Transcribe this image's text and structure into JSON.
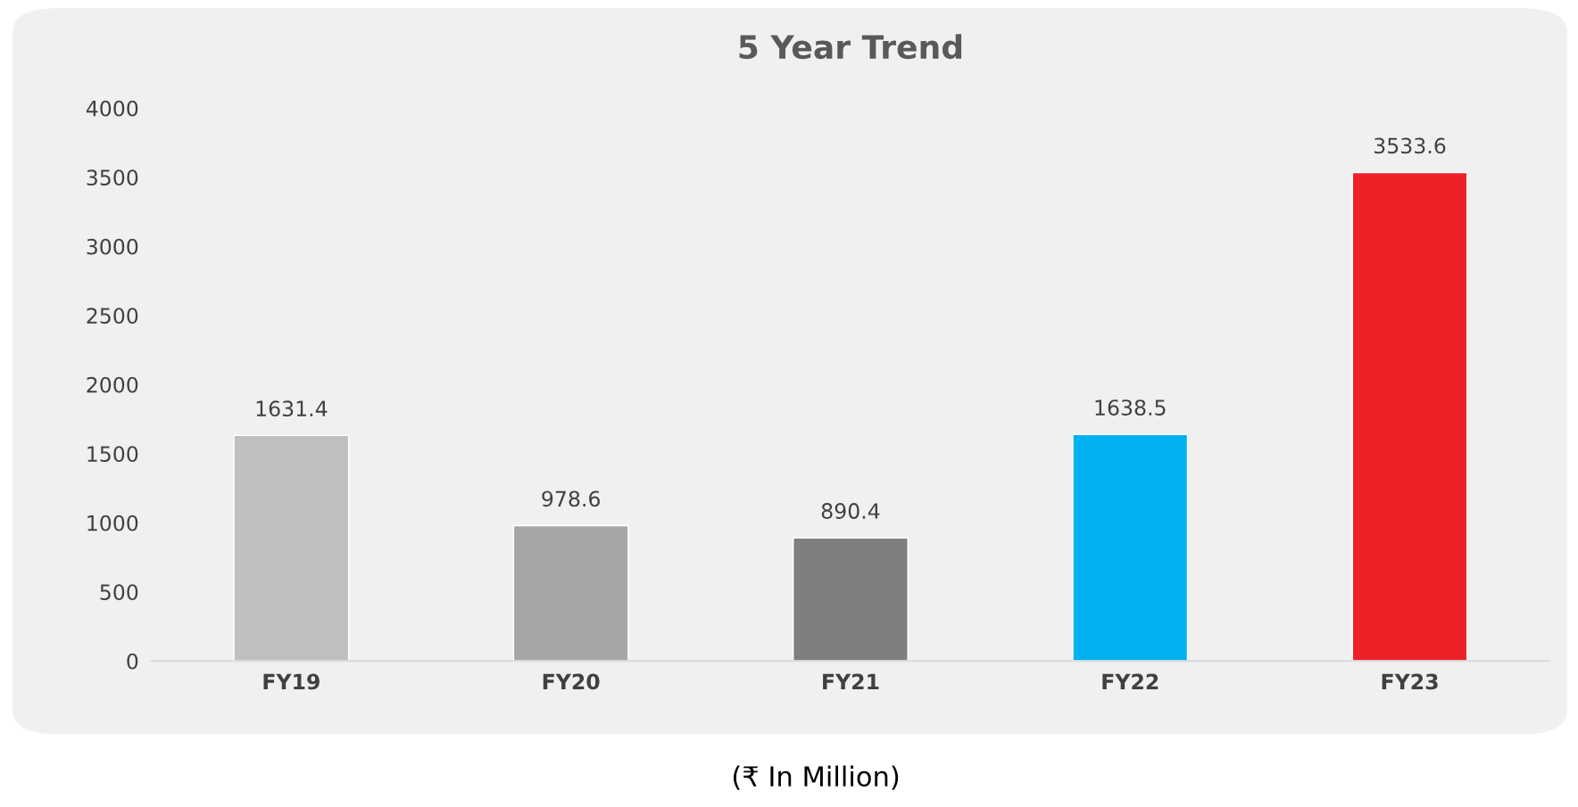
{
  "chart_data": {
    "type": "bar",
    "title": "5 Year Trend",
    "categories": [
      "FY19",
      "FY20",
      "FY21",
      "FY22",
      "FY23"
    ],
    "values": [
      1631.4,
      978.6,
      890.4,
      1638.5,
      3533.6
    ],
    "colors": [
      "#bfbfbf",
      "#a6a6a6",
      "#7f7f7f",
      "#00b0f0",
      "#ed2128"
    ],
    "ylim": [
      0,
      4000
    ],
    "yticks": [
      0,
      500,
      1000,
      1500,
      2000,
      2500,
      3000,
      3500,
      4000
    ],
    "grid": false,
    "legend": false,
    "data_labels": true,
    "annotations": [
      "(₹ In Million)"
    ]
  }
}
